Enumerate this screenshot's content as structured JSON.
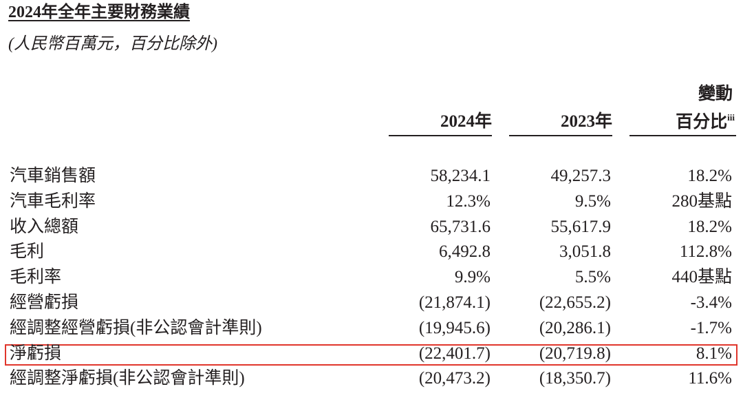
{
  "header": {
    "title": "2024年全年主要財務業績",
    "subtitle": "(人民幣百萬元，百分比除外)"
  },
  "table": {
    "columns": [
      "2024年",
      "2023年"
    ],
    "change_header": {
      "line1": "變動",
      "line2": "百分比",
      "note": "iii"
    },
    "rows": [
      [
        "汽車銷售額",
        "58,234.1",
        "49,257.3",
        "18.2%"
      ],
      [
        "汽車毛利率",
        "12.3%",
        "9.5%",
        "280基點"
      ],
      [
        "收入總額",
        "65,731.6",
        "55,617.9",
        "18.2%"
      ],
      [
        "毛利",
        "6,492.8",
        "3,051.8",
        "112.8%"
      ],
      [
        "毛利率",
        "9.9%",
        "5.5%",
        "440基點"
      ],
      [
        "經營虧損",
        "(21,874.1)",
        "(22,655.2)",
        "-3.4%"
      ],
      [
        "經調整經營虧損(非公認會計準則)",
        "(19,945.6)",
        "(20,286.1)",
        "-1.7%"
      ],
      [
        "淨虧損",
        "(22,401.7)",
        "(20,719.8)",
        "8.1%"
      ],
      [
        "經調整淨虧損(非公認會計準則)",
        "(20,473.2)",
        "(18,350.7)",
        "11.6%"
      ]
    ]
  }
}
